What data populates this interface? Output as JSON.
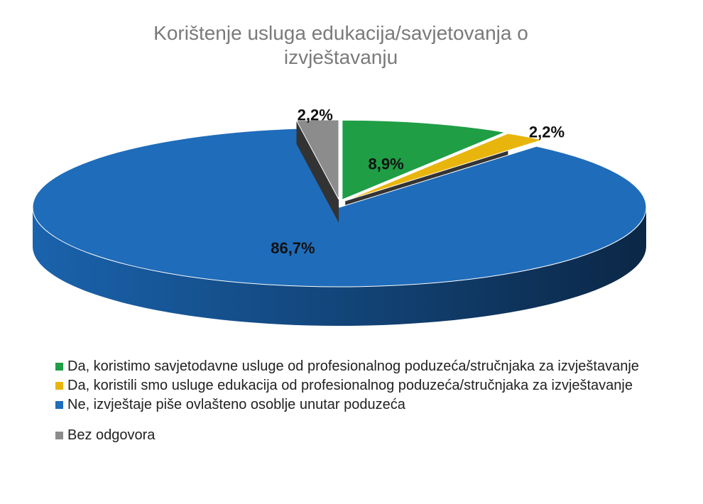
{
  "chart_data": {
    "type": "pie3d",
    "title": "Korištenje usluga edukacija/savjetovanja o izvještavanju",
    "categories": [
      "Da, koristimo savjetodavne usluge od profesionalnog poduzeća/stručnjaka za izvještavanje",
      "Da, koristili smo usluge edukacija od profesionalnog poduzeća/stručnjaka za izvještavanje",
      "Ne, izvještaje piše ovlašteno osoblje unutar poduzeća",
      "Bez odgovora"
    ],
    "values": [
      8.9,
      2.2,
      86.7,
      2.2
    ],
    "value_labels": [
      "8,9%",
      "2,2%",
      "86,7%",
      "2,2%"
    ],
    "colors": [
      "#1f9e45",
      "#e8b50c",
      "#1f6cba",
      "#8c8c8c"
    ],
    "legend": "bottom"
  }
}
